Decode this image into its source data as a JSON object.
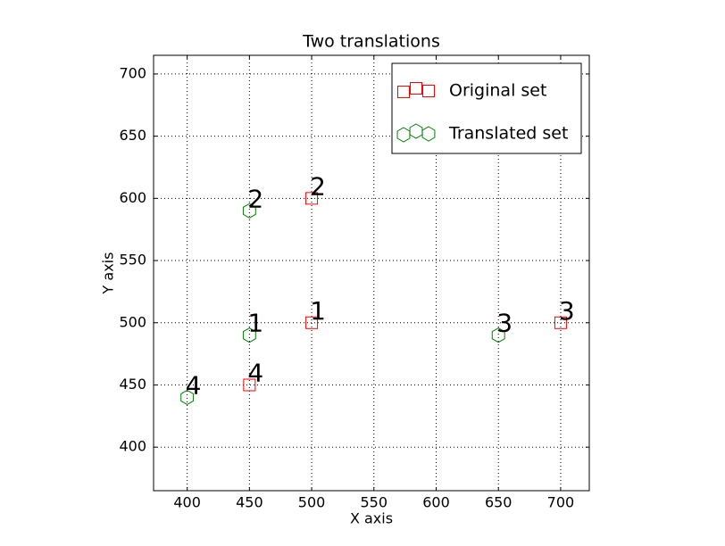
{
  "chart_data": {
    "type": "scatter",
    "title": "Two translations",
    "x_label": "X axis",
    "y_label": "Y axis",
    "series": [
      {
        "name": "Original set",
        "color": "#ff0000",
        "marker": "square",
        "x": [
          500,
          500,
          700,
          450
        ],
        "values": [
          500,
          600,
          500,
          450
        ],
        "labels": [
          "1",
          "2",
          "3",
          "4"
        ]
      },
      {
        "name": "Translated set",
        "color": "#008000",
        "marker": "hexagon",
        "x": [
          450,
          450,
          650,
          400
        ],
        "values": [
          490,
          590,
          490,
          440
        ],
        "labels": [
          "1",
          "2",
          "3",
          "4"
        ]
      }
    ],
    "xlim": [
      373,
      723
    ],
    "ylim": [
      365,
      715
    ],
    "xticks": [
      400,
      450,
      500,
      550,
      600,
      650,
      700
    ],
    "yticks": [
      400,
      450,
      500,
      550,
      600,
      650,
      700
    ],
    "grid": true,
    "legend": "upper right"
  }
}
